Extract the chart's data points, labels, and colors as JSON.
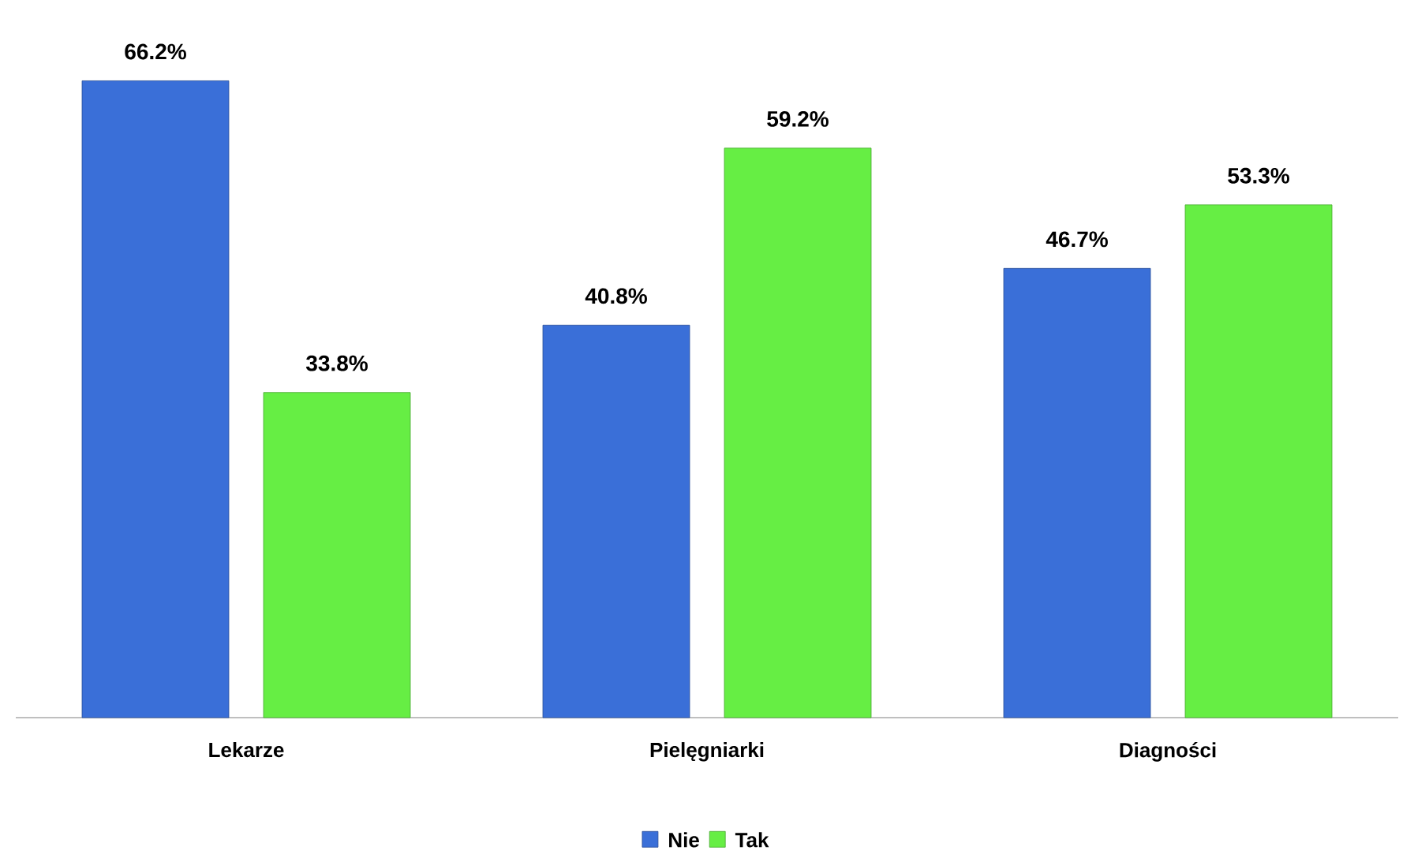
{
  "chart_data": {
    "type": "bar",
    "categories": [
      "Lekarze",
      "Pielęgniarki",
      "Diagności"
    ],
    "series": [
      {
        "name": "Nie",
        "color": "#3a6fd8",
        "values": [
          66.2,
          40.8,
          46.7
        ],
        "value_labels": [
          "66.2%",
          "40.8%",
          "46.7%"
        ]
      },
      {
        "name": "Tak",
        "color": "#66ee44",
        "values": [
          33.8,
          59.2,
          53.3
        ],
        "value_labels": [
          "33.8%",
          "59.2%",
          "53.3%"
        ]
      }
    ],
    "legend": "bottom"
  }
}
